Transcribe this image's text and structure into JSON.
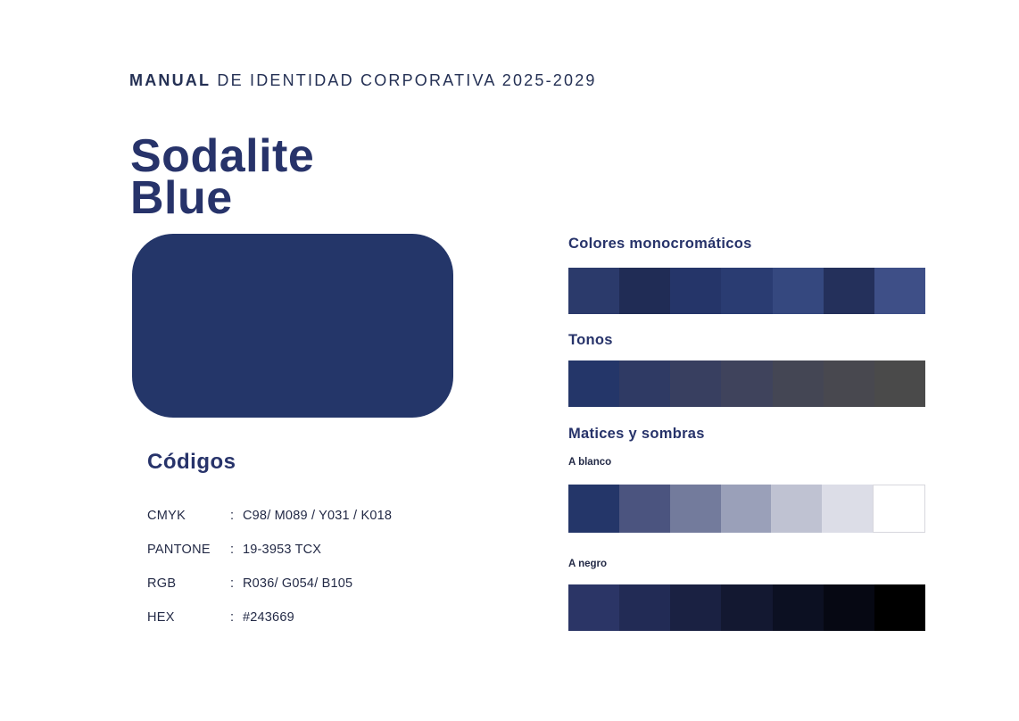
{
  "page": {
    "accent": "#243669",
    "background": "#ffffff"
  },
  "header": {
    "bold": "MANUAL",
    "rest": " DE IDENTIDAD CORPORATIVA 2025-2029"
  },
  "title": {
    "line1": "Sodalite",
    "line2": "Blue"
  },
  "swatch": {
    "color": "#243669"
  },
  "codes": {
    "heading": "Códigos",
    "rows": [
      {
        "label": "CMYK",
        "sep": ":",
        "value": "C98/ M089 / Y031 / K018"
      },
      {
        "label": "PANTONE",
        "sep": ":",
        "value": "19-3953 TCX"
      },
      {
        "label": "RGB",
        "sep": ":",
        "value": "R036/ G054/ B105"
      },
      {
        "label": "HEX",
        "sep": ":",
        "value": "#243669"
      }
    ]
  },
  "palettes": {
    "monochromatic": {
      "heading": "Colores monocromáticos",
      "colors": [
        "#2b3a6b",
        "#202c55",
        "#253569",
        "#2a3c72",
        "#35487f",
        "#24305b",
        "#3e4f87"
      ]
    },
    "tones": {
      "heading": "Tonos",
      "colors": [
        "#243669",
        "#2f3a64",
        "#383f60",
        "#3f435c",
        "#444654",
        "#48484f",
        "#4a4a4a"
      ]
    },
    "tints_shades": {
      "heading": "Matices y sombras",
      "to_white": {
        "label": "A blanco",
        "colors": [
          "#243669",
          "#4b547f",
          "#737b9c",
          "#9aa0b9",
          "#bfc2d2",
          "#dcdde7",
          "#ffffff"
        ]
      },
      "to_black": {
        "label": "A negro",
        "colors": [
          "#2b3566",
          "#222b55",
          "#1a2142",
          "#131831",
          "#0c1022",
          "#060813",
          "#000000"
        ]
      }
    }
  }
}
